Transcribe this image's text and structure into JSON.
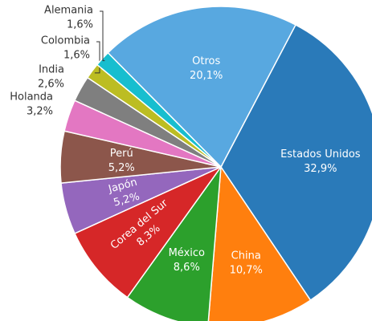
{
  "chart_data": {
    "type": "pie",
    "categories": [
      "Estados Unidos",
      "China",
      "México",
      "Corea del Sur",
      "Japón",
      "Perú",
      "Holanda",
      "India",
      "Colombia",
      "Alemania",
      "Otros"
    ],
    "values": [
      32.9,
      10.7,
      8.6,
      8.3,
      5.2,
      5.2,
      3.2,
      2.6,
      1.6,
      1.6,
      20.1
    ],
    "value_labels": [
      "32,9%",
      "10,7%",
      "8,6%",
      "8,3%",
      "5,2%",
      "5,2%",
      "3,2%",
      "2,6%",
      "1,6%",
      "1,6%",
      "20,1%"
    ],
    "colors": [
      "#2a7ab9",
      "#ff7f0e",
      "#2ca02c",
      "#d62728",
      "#9467bd",
      "#8c564b",
      "#e377c2",
      "#7f7f7f",
      "#bcbd22",
      "#17becf",
      "#58a8e0"
    ]
  }
}
